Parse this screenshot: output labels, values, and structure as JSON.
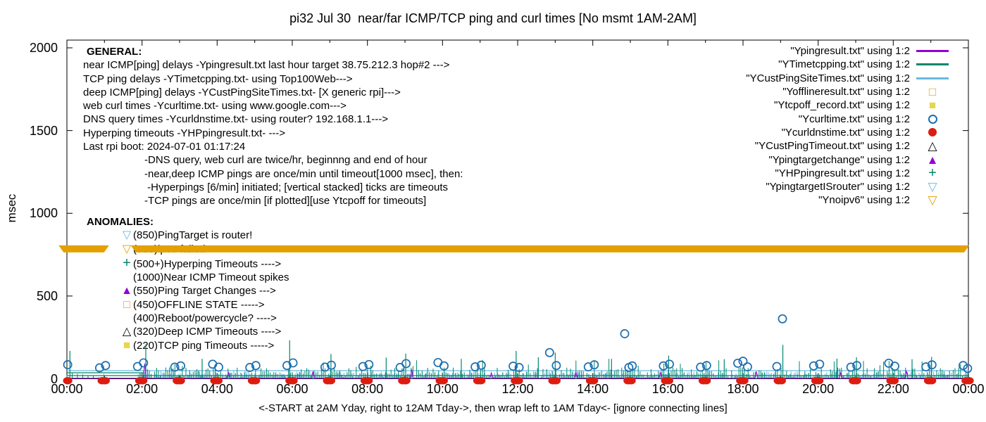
{
  "title": "pi32 Jul 30  near/far ICMP/TCP ping and curl times [No msmt 1AM-2AM]",
  "general": {
    "heading": "GENERAL:",
    "lines": [
      "near ICMP[ping] delays -Ypingresult.txt last hour target 38.75.212.3 hop#2 --->",
      "TCP ping delays -YTimetcpping.txt- using Top100Web--->",
      "deep ICMP[ping] delays -YCustPingSiteTimes.txt- [X generic rpi]--->",
      "web curl times -Ycurltime.txt- using www.google.com--->",
      "DNS query times -Ycurldnstime.txt- using router? 192.168.1.1--->",
      "Hyperping timeouts -YHPpingresult.txt- --->",
      "Last rpi boot: 2024-07-01 01:17:24"
    ],
    "notes": [
      "-DNS query, web curl are twice/hr, beginnng and end of hour",
      "-near,deep ICMP pings are once/min until timeout[1000 msec], then:",
      " -Hyperpings [6/min] initiated; [vertical stacked] ticks are timeouts",
      "-TCP pings are once/min [if plotted][use Ytcpoff for timeouts]"
    ]
  },
  "anomalies": {
    "heading": "ANOMALIES:",
    "items": [
      {
        "marker": "tri-down-open",
        "color": "#6cb7e4",
        "text": "(850)PingTarget is router!"
      },
      {
        "marker": "tri-down-open",
        "color": "#e3a000",
        "text": "(785)ipv6 failed ---->"
      },
      {
        "marker": "plus",
        "color": "#00876c",
        "text": "(500+)Hyperping Timeouts ---->"
      },
      {
        "marker": "none",
        "color": "#000000",
        "text": "(1000)Near ICMP Timeout spikes"
      },
      {
        "marker": "tri-up-filled",
        "color": "#9400d3",
        "text": "(550)Ping Target Changes --->"
      },
      {
        "marker": "square-open",
        "color": "#e3a000",
        "text": "(450)OFFLINE STATE ----->"
      },
      {
        "marker": "none",
        "color": "#000000",
        "text": "(400)Reboot/powercycle? ---->"
      },
      {
        "marker": "tri-up-open",
        "color": "#000000",
        "text": "(320)Deep ICMP Timeouts ---->"
      },
      {
        "marker": "square-filled",
        "color": "#e6d64c",
        "text": "(220)TCP ping Timeouts ----->"
      }
    ]
  },
  "legend": {
    "entries": [
      {
        "label": "\"Ypingresult.txt\" using 1:2",
        "sample": "line",
        "color": "#9400d3"
      },
      {
        "label": "\"YTimetcpping.txt\" using 1:2",
        "sample": "line",
        "color": "#00876c"
      },
      {
        "label": "\"YCustPingSiteTimes.txt\" using 1:2",
        "sample": "line",
        "color": "#6cb7e4"
      },
      {
        "label": "\"Yofflineresult.txt\" using 1:2",
        "sample": "square-open",
        "color": "#e3a000"
      },
      {
        "label": "\"Ytcpoff_record.txt\" using 1:2",
        "sample": "square-filled",
        "color": "#e6d64c"
      },
      {
        "label": "\"Ycurltime.txt\" using 1:2",
        "sample": "circle-open",
        "color": "#1c6eb0"
      },
      {
        "label": "\"Ycurldnstime.txt\" using 1:2",
        "sample": "circle-filled",
        "color": "#dd1c10"
      },
      {
        "label": "\"YCustPingTimeout.txt\" using 1:2",
        "sample": "tri-up-open",
        "color": "#000000"
      },
      {
        "label": "\"Ypingtargetchange\" using 1:2",
        "sample": "tri-up-filled",
        "color": "#9400d3"
      },
      {
        "label": "\"YHPpingresult.txt\" using 1:2",
        "sample": "plus",
        "color": "#00876c"
      },
      {
        "label": "\"YpingtargetISrouter\" using 1:2",
        "sample": "tri-down-open",
        "color": "#6cb7e4"
      },
      {
        "label": "\"Ynoipv6\" using 1:2",
        "sample": "tri-down-open",
        "color": "#e3a000"
      }
    ]
  },
  "chart_data": {
    "type": "line",
    "title": "pi32 Jul 30  near/far ICMP/TCP ping and curl times [No msmt 1AM-2AM]",
    "xlabel": "<-START at 2AM Yday, right to 12AM Tday->, then wrap left to 1AM Tday<- [ignore connecting lines]",
    "ylabel": "msec",
    "ylim": [
      0,
      2000
    ],
    "y_ticks": [
      0,
      500,
      1000,
      1500,
      2000
    ],
    "x_tick_labels": [
      "00:00",
      "02:00",
      "04:00",
      "06:00",
      "08:00",
      "10:00",
      "12:00",
      "14:00",
      "16:00",
      "18:00",
      "20:00",
      "22:00",
      "00:00"
    ],
    "hours_span": 24,
    "grid": false,
    "legend_position": "top-right-inside",
    "noise_seed": 42,
    "series": {
      "near_icmp_ping": {
        "file": "Ypingresult.txt",
        "color": "#9400d3",
        "style": "line",
        "baseline_ms": 3,
        "spikes": [
          [
            2.07,
            92
          ],
          [
            4.3,
            38
          ],
          [
            6.55,
            44
          ],
          [
            9.18,
            56
          ],
          [
            11.3,
            36
          ],
          [
            13.55,
            42
          ],
          [
            15.8,
            38
          ],
          [
            18.35,
            44
          ],
          [
            20.6,
            36
          ],
          [
            22.35,
            48
          ]
        ]
      },
      "tcp_ping": {
        "file": "YTimetcpping.txt",
        "color": "#00876c",
        "style": "noise",
        "range_h": [
          1.95,
          24.02
        ],
        "min_ms": 4,
        "max_ms": 68,
        "spike_chance": 0.05,
        "spike_max_ms": 125,
        "sparse_range_h": [
          0,
          1.0
        ],
        "sparse_max_ms": 40,
        "tall_spikes": [
          [
            0.08,
            168
          ],
          [
            2.1,
            208
          ],
          [
            3.6,
            120
          ],
          [
            5.93,
            232
          ],
          [
            7.03,
            150
          ],
          [
            8.5,
            128
          ],
          [
            9.02,
            152
          ],
          [
            10.5,
            120
          ],
          [
            11.96,
            168
          ],
          [
            12.55,
            130
          ],
          [
            13.0,
            158
          ],
          [
            14.5,
            120
          ],
          [
            16.02,
            140
          ],
          [
            17.5,
            118
          ],
          [
            19.06,
            205
          ],
          [
            20.5,
            122
          ],
          [
            21.02,
            130
          ],
          [
            22.5,
            118
          ],
          [
            23.02,
            132
          ]
        ],
        "hlines": [
          {
            "ms": 19,
            "h": [
              0,
              24.02
            ]
          },
          {
            "ms": 36,
            "h": [
              0,
              2.05
            ]
          }
        ]
      },
      "deep_icmp_ping": {
        "file": "YCustPingSiteTimes.txt",
        "color": "#6cb7e4",
        "style": "noise",
        "range_h": [
          1.9,
          24.02
        ],
        "min_ms": 3,
        "max_ms": 44,
        "spike_chance": 0.03,
        "spike_max_ms": 58,
        "sparse_range_h": [
          0,
          1.0
        ],
        "sparse_max_ms": 36,
        "tall_spikes": [],
        "hlines": [
          {
            "ms": 49,
            "h": [
              0,
              24.02
            ]
          }
        ]
      },
      "web_curl": {
        "file": "Ycurltime.txt",
        "color": "#1c6eb0",
        "style": "open-circle",
        "points": [
          [
            0.02,
            85
          ],
          [
            0.87,
            66
          ],
          [
            1.03,
            80
          ],
          [
            1.88,
            74
          ],
          [
            2.04,
            96
          ],
          [
            2.87,
            70
          ],
          [
            3.03,
            78
          ],
          [
            3.88,
            88
          ],
          [
            4.04,
            70
          ],
          [
            4.87,
            68
          ],
          [
            5.03,
            80
          ],
          [
            5.86,
            80
          ],
          [
            6.02,
            96
          ],
          [
            6.87,
            70
          ],
          [
            7.04,
            82
          ],
          [
            7.88,
            74
          ],
          [
            8.04,
            86
          ],
          [
            8.87,
            68
          ],
          [
            9.03,
            92
          ],
          [
            9.88,
            98
          ],
          [
            10.04,
            78
          ],
          [
            10.87,
            72
          ],
          [
            11.03,
            82
          ],
          [
            11.88,
            76
          ],
          [
            12.04,
            68
          ],
          [
            12.85,
            158
          ],
          [
            13.03,
            80
          ],
          [
            13.88,
            72
          ],
          [
            14.04,
            84
          ],
          [
            14.85,
            272
          ],
          [
            14.96,
            68
          ],
          [
            15.05,
            78
          ],
          [
            15.88,
            78
          ],
          [
            16.04,
            88
          ],
          [
            16.87,
            70
          ],
          [
            17.03,
            80
          ],
          [
            17.86,
            94
          ],
          [
            18.0,
            106
          ],
          [
            18.12,
            72
          ],
          [
            18.9,
            74
          ],
          [
            19.05,
            362
          ],
          [
            19.88,
            78
          ],
          [
            20.04,
            88
          ],
          [
            20.87,
            70
          ],
          [
            21.03,
            80
          ],
          [
            21.88,
            94
          ],
          [
            22.04,
            76
          ],
          [
            22.87,
            72
          ],
          [
            23.03,
            84
          ],
          [
            23.86,
            80
          ],
          [
            23.98,
            62
          ]
        ]
      },
      "dns_query": {
        "file": "Ycurldnstime.txt",
        "color": "#dd1c10",
        "style": "filled-circle",
        "hourly_pairs": {
          "offsets": [
            -0.06,
            0.02
          ],
          "ms": -12,
          "from": 0,
          "to": 24
        }
      },
      "no_ipv6": {
        "file": "Ynoipv6",
        "color": "#e3a000",
        "style": "band",
        "ms": 785,
        "half_thickness_ms": 21,
        "segments_h": [
          [
            -0.22,
            1.12
          ],
          [
            1.7,
            24.02
          ]
        ]
      }
    }
  }
}
